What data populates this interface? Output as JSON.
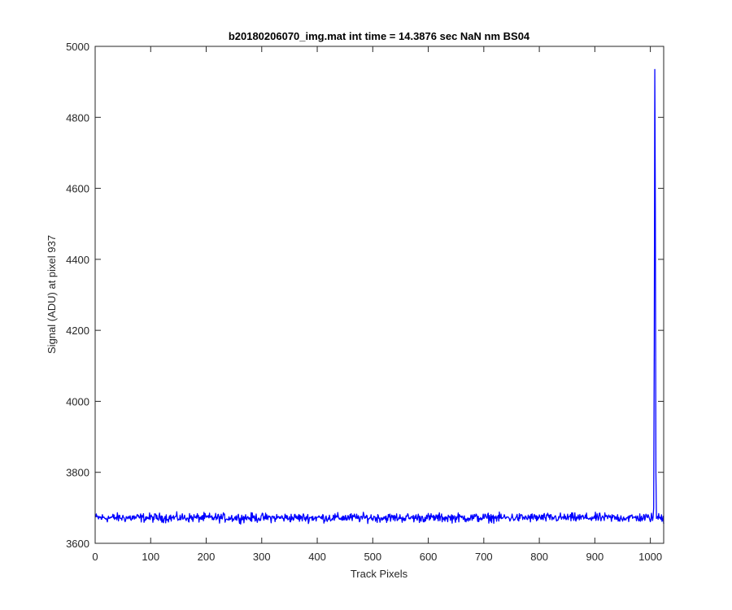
{
  "chart_data": {
    "type": "line",
    "title": "b20180206070_img.mat int time = 14.3876 sec  NaN nm BS04",
    "xlabel": "Track Pixels",
    "ylabel": "Signal (ADU) at pixel 937",
    "xlim": [
      0,
      1024
    ],
    "ylim": [
      3600,
      5000
    ],
    "xticks": [
      0,
      100,
      200,
      300,
      400,
      500,
      600,
      700,
      800,
      900,
      1000
    ],
    "yticks": [
      3600,
      3800,
      4000,
      4200,
      4400,
      4600,
      4800,
      5000
    ],
    "grid": false,
    "series": [
      {
        "color": "#0000ff",
        "x_start": 1,
        "x_end": 1024,
        "baseline": 3672,
        "noise_amplitude": 14,
        "spike": {
          "x": [
            1006,
            1007,
            1008,
            1009,
            1010,
            1011
          ],
          "y": [
            3700,
            4150,
            4935,
            4550,
            3800,
            3670
          ]
        },
        "min_dip": {
          "x": 1024,
          "y": 3655
        }
      }
    ]
  }
}
